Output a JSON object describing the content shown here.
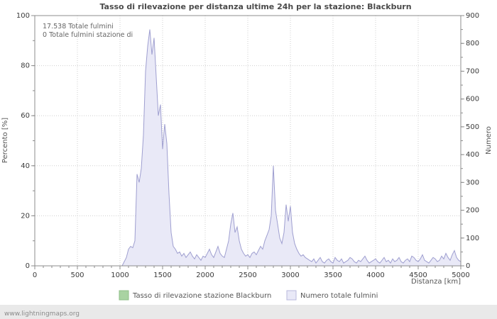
{
  "chart_data": {
    "type": "area",
    "title": "Tasso di rilevazione per distanza ultime 24h per la stazione: Blackburn",
    "annotations": {
      "total": "17.538 Totale fulmini",
      "station": "0 Totale fulmini stazione di"
    },
    "xlabel": "Distanza   [km]",
    "ylabel_left": "Percento   [%]",
    "ylabel_right": "Numero",
    "xlim": [
      0,
      5000
    ],
    "x_step": 25,
    "ylim_left": [
      0,
      100
    ],
    "ylim_right": [
      0,
      900
    ],
    "x_tick_major": 500,
    "x_tick_minor": 100,
    "y_left_tick_major": 20,
    "y_left_tick_minor": 10,
    "y_right_tick_major": 100,
    "y_right_tick_minor": 50,
    "grid": true,
    "colors": {
      "grid": "#cfcfcf",
      "axis": "#8c8c8c",
      "area_fill": "#e9e9f7",
      "area_line": "#9f9fd0",
      "detection_line": "#a9d3a2"
    },
    "legend": [
      {
        "label": "Tasso di rilevazione stazione Blackburn",
        "swatch": "#a9d3a2",
        "swatch_border": "#8fbf88"
      },
      {
        "label": "Numero totale fulmini",
        "swatch": "#e9e9f7",
        "swatch_border": "#b9b9dd"
      }
    ],
    "series": [
      {
        "name": "Tasso di rilevazione stazione Blackburn",
        "axis": "left",
        "constant": 0
      },
      {
        "name": "Numero totale fulmini",
        "axis": "right",
        "values": [
          0,
          0,
          0,
          0,
          0,
          0,
          0,
          0,
          0,
          0,
          0,
          0,
          0,
          0,
          0,
          0,
          0,
          0,
          0,
          0,
          0,
          0,
          0,
          0,
          0,
          0,
          0,
          0,
          0,
          0,
          0,
          0,
          0,
          0,
          0,
          0,
          0,
          0,
          0,
          0,
          0,
          0,
          15,
          30,
          60,
          70,
          65,
          90,
          330,
          300,
          350,
          470,
          700,
          790,
          850,
          760,
          820,
          680,
          540,
          580,
          420,
          510,
          440,
          260,
          120,
          70,
          60,
          45,
          50,
          35,
          45,
          30,
          40,
          50,
          35,
          25,
          40,
          30,
          20,
          35,
          30,
          45,
          60,
          40,
          30,
          50,
          70,
          45,
          35,
          30,
          60,
          90,
          150,
          190,
          120,
          140,
          90,
          60,
          45,
          35,
          40,
          30,
          45,
          50,
          40,
          55,
          70,
          60,
          90,
          110,
          130,
          180,
          360,
          200,
          150,
          100,
          80,
          120,
          220,
          160,
          215,
          120,
          80,
          60,
          45,
          35,
          40,
          30,
          25,
          20,
          15,
          25,
          10,
          20,
          30,
          15,
          10,
          20,
          25,
          15,
          10,
          30,
          20,
          15,
          25,
          10,
          15,
          20,
          30,
          25,
          15,
          10,
          20,
          15,
          25,
          35,
          20,
          10,
          15,
          20,
          25,
          15,
          10,
          20,
          30,
          15,
          20,
          10,
          25,
          15,
          20,
          30,
          15,
          10,
          20,
          25,
          15,
          35,
          30,
          20,
          15,
          25,
          40,
          20,
          15,
          10,
          20,
          30,
          25,
          15,
          20,
          35,
          25,
          45,
          30,
          20,
          40,
          55,
          30,
          20,
          15
        ]
      }
    ]
  },
  "footer": {
    "link": "www.lightningmaps.org"
  }
}
